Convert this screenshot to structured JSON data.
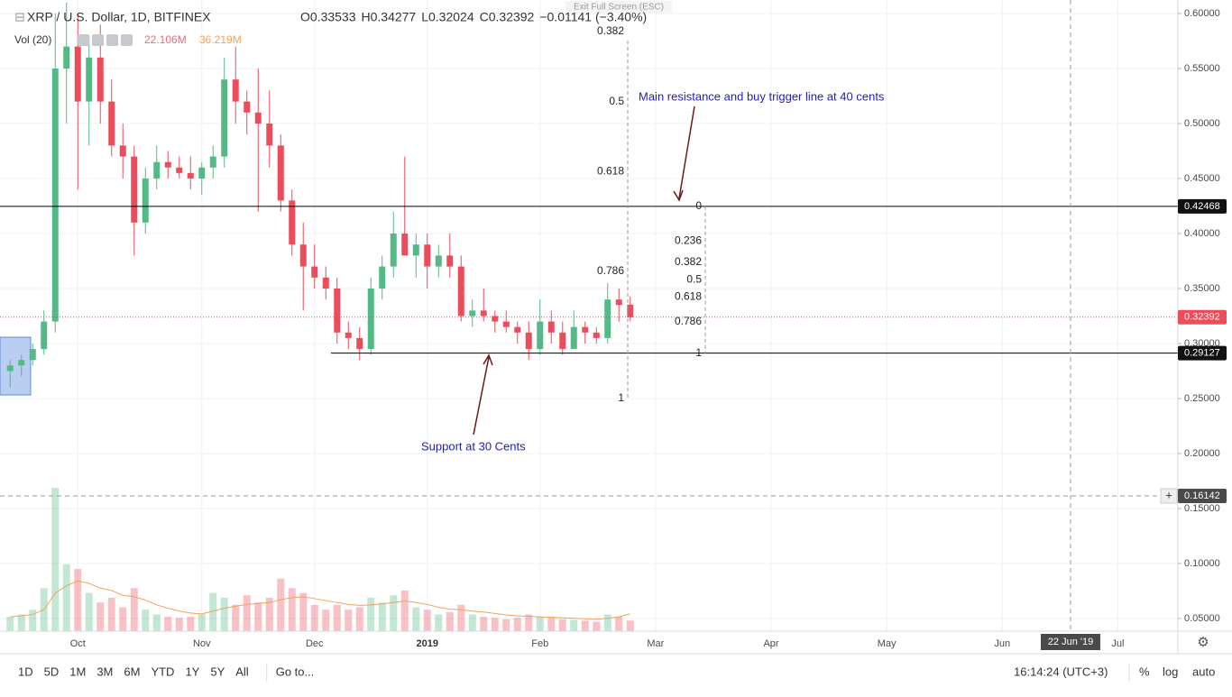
{
  "chart_data": {
    "type": "candlestick",
    "title": "XRP / U.S. Dollar, 1D, BITFINEX",
    "ohlc_legend": [
      "O0.33533",
      "H0.34277",
      "L0.32024",
      "C0.32392",
      "−0.01141 (−3.40%)"
    ],
    "volume_legend": [
      "Vol (20)",
      "22.106M",
      "36.219M"
    ],
    "notice": "Exit Full Screen (ESC)",
    "categories": [
      null,
      null,
      null,
      null,
      null,
      null,
      "Oct",
      null,
      null,
      null,
      null,
      null,
      null,
      null,
      null,
      null,
      null,
      "Nov",
      null,
      null,
      null,
      null,
      null,
      null,
      null,
      null,
      null,
      "Dec",
      null,
      null,
      null,
      null,
      null,
      null,
      null,
      null,
      null,
      "2019",
      null,
      null,
      null,
      null,
      null,
      null,
      null,
      null,
      null,
      "Feb",
      null,
      null,
      null,
      null,
      null,
      null,
      null,
      null
    ],
    "future_categories": [
      "Mar",
      "Apr",
      "May",
      "Jun",
      "Jul"
    ],
    "open": [
      0.275,
      0.28,
      0.285,
      0.295,
      0.32,
      0.55,
      0.57,
      0.52,
      0.56,
      0.52,
      0.48,
      0.47,
      0.41,
      0.45,
      0.465,
      0.46,
      0.455,
      0.45,
      0.46,
      0.47,
      0.54,
      0.52,
      0.51,
      0.5,
      0.48,
      0.43,
      0.39,
      0.37,
      0.36,
      0.35,
      0.31,
      0.305,
      0.295,
      0.35,
      0.37,
      0.4,
      0.38,
      0.39,
      0.37,
      0.38,
      0.37,
      0.325,
      0.33,
      0.325,
      0.32,
      0.315,
      0.31,
      0.295,
      0.32,
      0.31,
      0.295,
      0.315,
      0.31,
      0.305,
      0.34,
      0.33533
    ],
    "high": [
      0.285,
      0.29,
      0.3,
      0.33,
      0.6,
      0.61,
      0.6,
      0.58,
      0.59,
      0.54,
      0.5,
      0.48,
      0.46,
      0.48,
      0.475,
      0.47,
      0.47,
      0.465,
      0.48,
      0.56,
      0.57,
      0.53,
      0.55,
      0.53,
      0.49,
      0.44,
      0.41,
      0.39,
      0.37,
      0.36,
      0.32,
      0.315,
      0.36,
      0.38,
      0.42,
      0.47,
      0.4,
      0.4,
      0.39,
      0.4,
      0.38,
      0.34,
      0.35,
      0.33,
      0.33,
      0.32,
      0.32,
      0.34,
      0.33,
      0.32,
      0.33,
      0.32,
      0.315,
      0.355,
      0.35,
      0.34277
    ],
    "low": [
      0.26,
      0.27,
      0.28,
      0.29,
      0.31,
      0.5,
      0.44,
      0.48,
      0.5,
      0.47,
      0.45,
      0.38,
      0.4,
      0.44,
      0.45,
      0.45,
      0.44,
      0.435,
      0.45,
      0.46,
      0.5,
      0.49,
      0.42,
      0.46,
      0.42,
      0.38,
      0.33,
      0.35,
      0.34,
      0.3,
      0.295,
      0.285,
      0.29,
      0.34,
      0.36,
      0.38,
      0.36,
      0.35,
      0.36,
      0.36,
      0.32,
      0.315,
      0.32,
      0.31,
      0.31,
      0.3,
      0.285,
      0.29,
      0.3,
      0.29,
      0.295,
      0.3,
      0.3,
      0.3,
      0.32,
      0.32024
    ],
    "close": [
      0.28,
      0.285,
      0.295,
      0.32,
      0.55,
      0.57,
      0.52,
      0.56,
      0.52,
      0.48,
      0.47,
      0.41,
      0.45,
      0.465,
      0.46,
      0.455,
      0.45,
      0.46,
      0.47,
      0.54,
      0.52,
      0.51,
      0.5,
      0.48,
      0.43,
      0.39,
      0.37,
      0.36,
      0.35,
      0.31,
      0.305,
      0.295,
      0.35,
      0.37,
      0.4,
      0.38,
      0.39,
      0.37,
      0.38,
      0.37,
      0.325,
      0.33,
      0.325,
      0.32,
      0.315,
      0.31,
      0.295,
      0.32,
      0.31,
      0.295,
      0.315,
      0.31,
      0.305,
      0.34,
      0.335,
      0.32392
    ],
    "volume": [
      30,
      35,
      45,
      90,
      300,
      140,
      130,
      80,
      60,
      70,
      50,
      90,
      45,
      35,
      30,
      28,
      30,
      35,
      80,
      70,
      55,
      75,
      60,
      70,
      110,
      90,
      80,
      55,
      45,
      55,
      45,
      50,
      70,
      60,
      75,
      85,
      50,
      45,
      35,
      40,
      55,
      35,
      30,
      28,
      25,
      28,
      35,
      30,
      28,
      25,
      24,
      22,
      20,
      35,
      30,
      22.106
    ],
    "volume_ma": [
      30,
      32,
      35,
      45,
      80,
      95,
      105,
      100,
      90,
      85,
      75,
      72,
      65,
      55,
      48,
      42,
      38,
      36,
      42,
      48,
      52,
      56,
      58,
      60,
      66,
      70,
      72,
      68,
      64,
      60,
      56,
      54,
      55,
      57,
      60,
      63,
      60,
      56,
      50,
      46,
      45,
      42,
      40,
      37,
      34,
      32,
      31,
      30,
      29,
      28,
      27,
      26,
      25,
      27,
      30,
      36.219
    ],
    "up_color": "#53b987",
    "down_color": "#eb4d5c",
    "volume_ma_color": "#f0a35a",
    "ylim": [
      0.0385,
      0.6123
    ],
    "yticks": [
      {
        "value": 0.05,
        "label": "0.05000"
      },
      {
        "value": 0.1,
        "label": "0.10000"
      },
      {
        "value": 0.15,
        "label": "0.15000"
      },
      {
        "value": 0.2,
        "label": "0.20000"
      },
      {
        "value": 0.25,
        "label": "0.25000"
      },
      {
        "value": 0.3,
        "label": "0.30000"
      },
      {
        "value": 0.35,
        "label": "0.35000"
      },
      {
        "value": 0.4,
        "label": "0.40000"
      },
      {
        "value": 0.45,
        "label": "0.45000"
      },
      {
        "value": 0.5,
        "label": "0.50000"
      },
      {
        "value": 0.55,
        "label": "0.55000"
      },
      {
        "value": 0.6,
        "label": "0.60000"
      }
    ],
    "vlim": [
      0,
      330
    ],
    "grid": true,
    "resistance": 0.42468,
    "support": 0.29127,
    "last_price": 0.32392,
    "crosshair": {
      "price": 0.16142,
      "date": "22 Jun '19"
    },
    "fib_sets": [
      {
        "from": 0.79,
        "to": 0.25,
        "levels": [
          0.382,
          0.5,
          0.618,
          0.786,
          1
        ]
      },
      {
        "from": 0.42468,
        "to": 0.29127,
        "levels": [
          0,
          0.236,
          0.382,
          0.5,
          0.618,
          0.786,
          1
        ]
      }
    ],
    "annotations": [
      "Main resistance and buy trigger line at 40 cents",
      "Support at 30 Cents"
    ],
    "toolbar": [
      "1D",
      "5D",
      "1M",
      "3M",
      "6M",
      "YTD",
      "1Y",
      "5Y",
      "All",
      "Go to..."
    ],
    "status": [
      "16:14:24 (UTC+3)",
      "%",
      "log",
      "auto"
    ]
  }
}
